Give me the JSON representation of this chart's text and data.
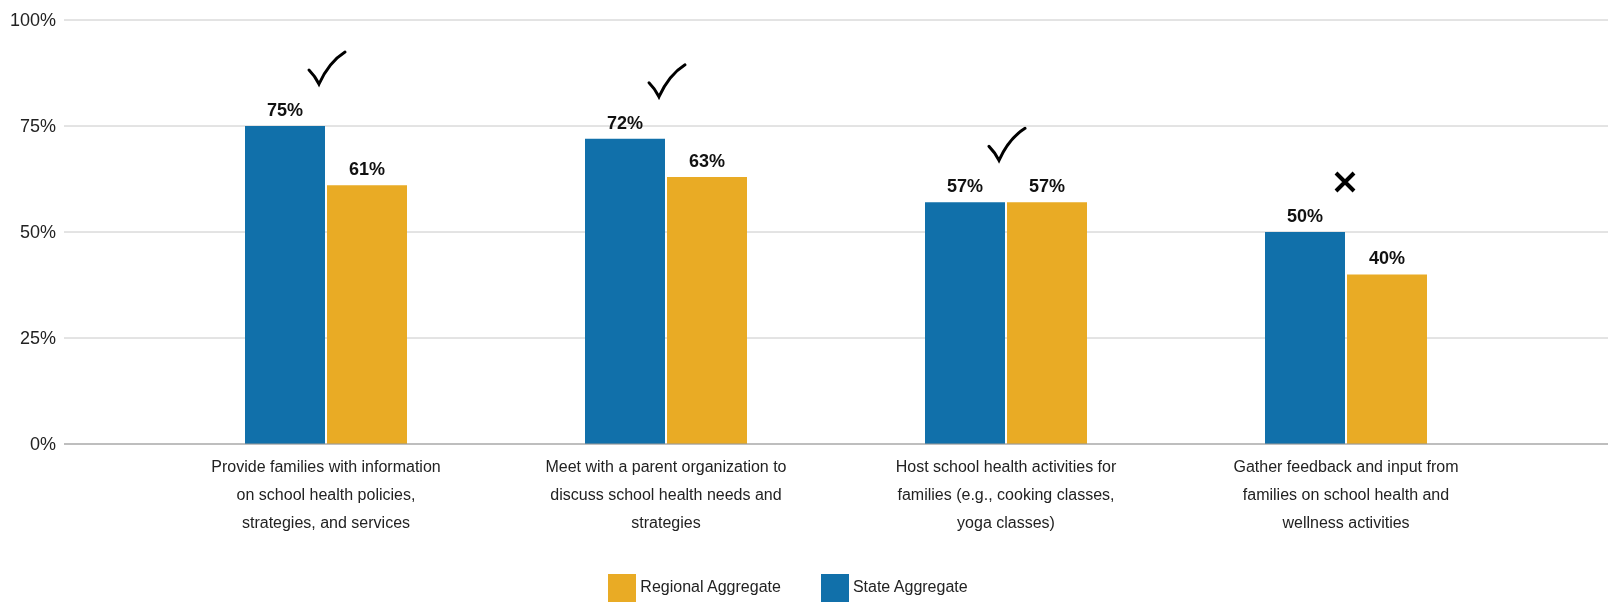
{
  "chart_data": {
    "type": "bar",
    "categories": [
      "Provide families with information on school health policies, strategies, and services",
      "Meet with a parent organization to discuss school health needs and strategies",
      "Host school health activities for families (e.g., cooking classes, yoga classes)",
      "Gather feedback and input from families on school health and wellness activities"
    ],
    "series": [
      {
        "name": "State Aggregate",
        "color": "#1170aa",
        "values": [
          75,
          72,
          57,
          50
        ]
      },
      {
        "name": "Regional Aggregate",
        "color": "#e9ab25",
        "values": [
          61,
          63,
          57,
          40
        ]
      }
    ],
    "ylim": [
      0,
      100
    ],
    "yticks": [
      {
        "value": 0,
        "label": "0%"
      },
      {
        "value": 25,
        "label": "25%"
      },
      {
        "value": 50,
        "label": "50%"
      },
      {
        "value": 75,
        "label": "75%"
      },
      {
        "value": 100,
        "label": "100%"
      }
    ],
    "value_labels": [
      [
        "75%",
        "72%",
        "57%",
        "50%"
      ],
      [
        "61%",
        "63%",
        "57%",
        "40%"
      ]
    ],
    "grid": "y",
    "legend": "bottom"
  }
}
